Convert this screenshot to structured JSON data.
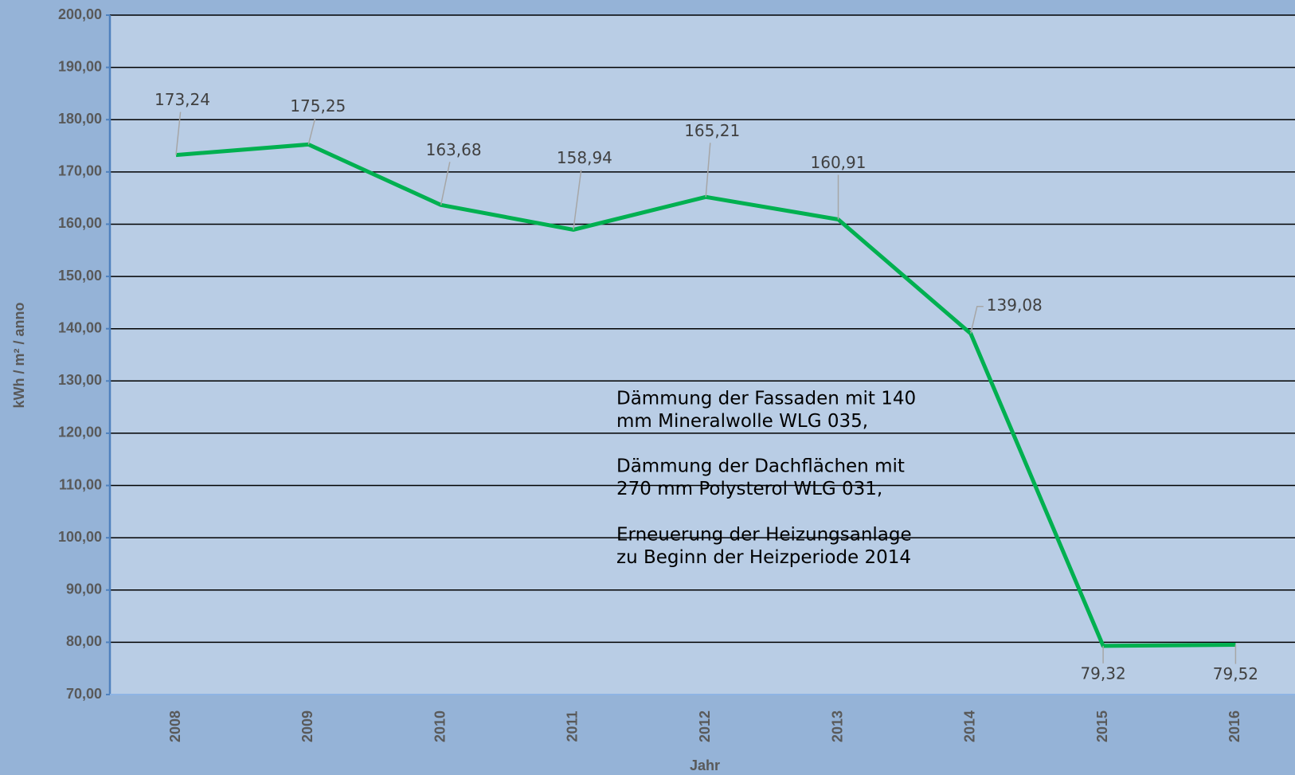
{
  "chart_data": {
    "type": "line",
    "categories": [
      "2008",
      "2009",
      "2010",
      "2011",
      "2012",
      "2013",
      "2014",
      "2015",
      "2016"
    ],
    "values": [
      173.24,
      175.25,
      163.68,
      158.94,
      165.21,
      160.91,
      139.08,
      79.32,
      79.52
    ],
    "value_labels": [
      "173,24",
      "175,25",
      "163,68",
      "158,94",
      "165,21",
      "160,91",
      "139,08",
      "79,32",
      "79,52"
    ],
    "color": "#00b050",
    "ylim": [
      70,
      200
    ],
    "yticks": [
      {
        "value": 70,
        "label": "70,00"
      },
      {
        "value": 80,
        "label": "80,00"
      },
      {
        "value": 90,
        "label": "90,00"
      },
      {
        "value": 100,
        "label": "100,00"
      },
      {
        "value": 110,
        "label": "110,00"
      },
      {
        "value": 120,
        "label": "120,00"
      },
      {
        "value": 130,
        "label": "130,00"
      },
      {
        "value": 140,
        "label": "140,00"
      },
      {
        "value": 150,
        "label": "150,00"
      },
      {
        "value": 160,
        "label": "160,00"
      },
      {
        "value": 170,
        "label": "170,00"
      },
      {
        "value": 180,
        "label": "180,00"
      },
      {
        "value": 190,
        "label": "190,00"
      },
      {
        "value": 200,
        "label": "200,00"
      }
    ],
    "grid": true,
    "x_label": "Jahr",
    "y_label": "kWh / m² / anno",
    "annotation": [
      [
        "Dämmung der Fassaden mit 140",
        "mm Mineralwolle WLG 035,"
      ],
      [
        "Dämmung der Dachflächen mit",
        "270 mm Polysterol WLG 031,"
      ],
      [
        "Erneuerung der Heizungsanlage",
        "zu Beginn der Heizperiode 2014"
      ]
    ]
  }
}
